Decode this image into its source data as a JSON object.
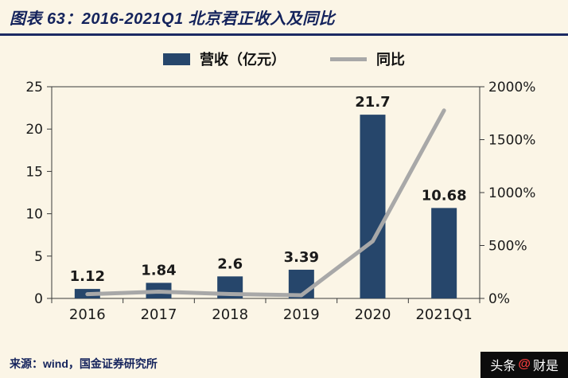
{
  "title": "图表 63：2016-2021Q1 北京君正收入及同比",
  "legend": {
    "bar_label": "营收（亿元）",
    "line_label": "同比"
  },
  "source": "来源：wind，国金证券研究所",
  "watermark": {
    "brand": "头条",
    "at": "@",
    "name": "财是"
  },
  "colors": {
    "bar": "#26466b",
    "line": "#a8a8a8",
    "background": "#fbf5e6",
    "title": "#14235c",
    "axis": "#3a3a3a"
  },
  "chart_data": {
    "type": "bar",
    "categories": [
      "2016",
      "2017",
      "2018",
      "2019",
      "2020",
      "2021Q1"
    ],
    "series": [
      {
        "name": "营收（亿元）",
        "type": "bar",
        "axis": "left",
        "values": [
          1.12,
          1.84,
          2.6,
          3.39,
          21.7,
          10.68
        ],
        "labels": [
          "1.12",
          "1.84",
          "2.6",
          "3.39",
          "21.7",
          "10.68"
        ]
      },
      {
        "name": "同比",
        "type": "line",
        "axis": "right",
        "values": [
          40,
          64,
          41,
          30,
          540,
          1776
        ]
      }
    ],
    "title": "2016-2021Q1 北京君正收入及同比",
    "xlabel": "",
    "ylabel_left": "营收（亿元）",
    "ylabel_right": "同比",
    "left_axis": {
      "min": 0,
      "max": 25,
      "ticks": [
        0,
        5,
        10,
        15,
        20,
        25
      ]
    },
    "right_axis": {
      "min": 0,
      "max": 2000,
      "tick_values": [
        0,
        500,
        1000,
        1500,
        2000
      ],
      "tick_labels": [
        "0%",
        "500%",
        "1000%",
        "1500%",
        "2000%"
      ]
    },
    "grid": false,
    "legend_position": "top"
  }
}
